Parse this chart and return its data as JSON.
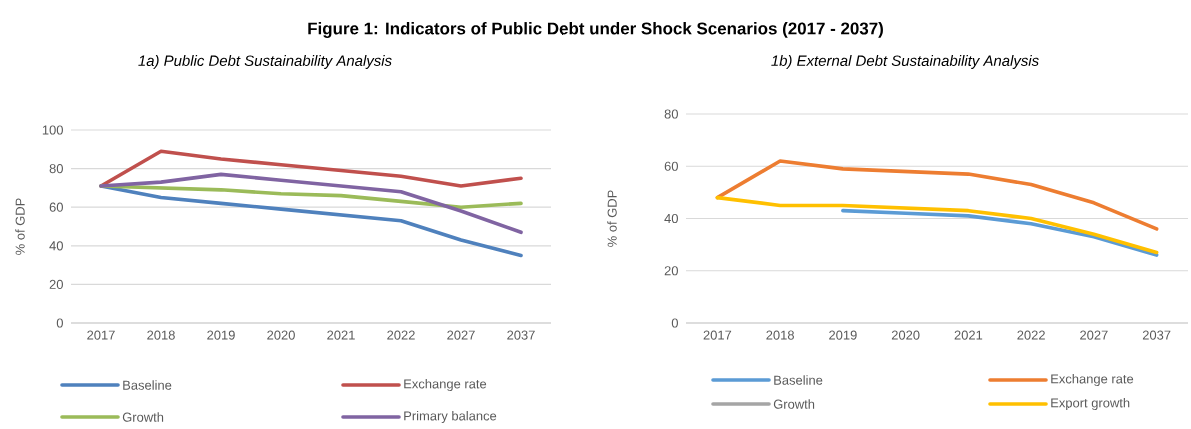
{
  "chart_data": [
    {
      "type": "line",
      "title": "Figure 1: Indicators of Public Debt under Shock Scenarios (2017 - 2037)",
      "subtitle": "1a) Public Debt Sustainability Analysis",
      "ylabel": "% of GDP",
      "categories": [
        "2017",
        "2018",
        "2019",
        "2020",
        "2021",
        "2022",
        "2027",
        "2037"
      ],
      "ylim": [
        0,
        100
      ],
      "yticks": [
        0,
        20,
        40,
        60,
        80,
        100
      ],
      "grid": "y",
      "legend": "bottom",
      "series": [
        {
          "name": "Baseline",
          "color": "#4f81bd",
          "values": [
            71,
            65,
            62,
            59,
            56,
            53,
            43,
            35
          ]
        },
        {
          "name": "Exchange rate",
          "color": "#c0504d",
          "values": [
            71,
            89,
            85,
            82,
            79,
            76,
            71,
            75
          ]
        },
        {
          "name": "Growth",
          "color": "#9bbb59",
          "values": [
            71,
            70,
            69,
            67,
            66,
            63,
            60,
            62
          ]
        },
        {
          "name": "Primary balance",
          "color": "#8064a2",
          "values": [
            71,
            73,
            77,
            74,
            71,
            68,
            58,
            47
          ]
        }
      ]
    },
    {
      "type": "line",
      "subtitle": "1b) External Debt Sustainability Analysis",
      "ylabel": "% of GDP",
      "categories": [
        "2017",
        "2018",
        "2019",
        "2020",
        "2021",
        "2022",
        "2027",
        "2037"
      ],
      "ylim": [
        0,
        80
      ],
      "yticks": [
        0,
        20,
        40,
        60,
        80
      ],
      "grid": "y",
      "legend": "bottom",
      "series": [
        {
          "name": "Baseline",
          "color": "#5b9bd5",
          "values": [
            null,
            null,
            43,
            42,
            41,
            38,
            33,
            26
          ]
        },
        {
          "name": "Exchange rate",
          "color": "#ed7d31",
          "values": [
            48,
            62,
            59,
            58,
            57,
            53,
            46,
            36
          ]
        },
        {
          "name": "Growth",
          "color": "#a5a5a5",
          "values": [
            null,
            null,
            null,
            null,
            null,
            null,
            null,
            null
          ]
        },
        {
          "name": "Export growth",
          "color": "#ffc000",
          "values": [
            48,
            45,
            45,
            44,
            43,
            40,
            34,
            27
          ]
        }
      ]
    }
  ]
}
